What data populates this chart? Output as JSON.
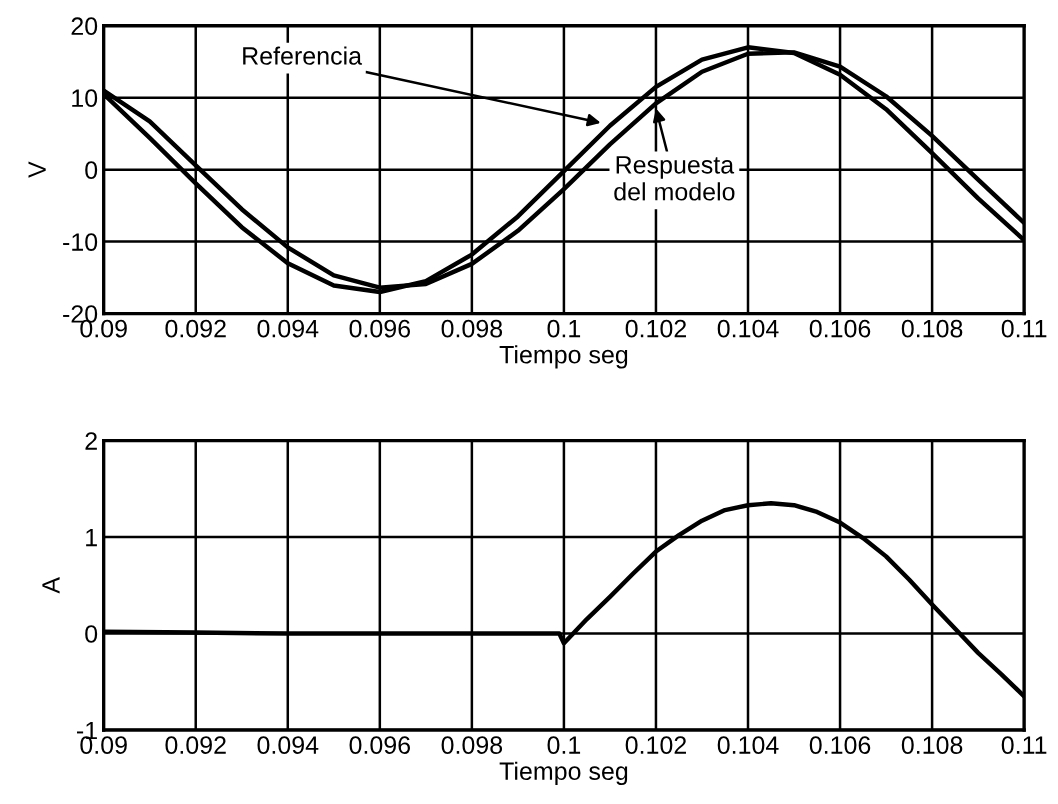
{
  "chart_data": [
    {
      "type": "line",
      "xlabel": "Tiempo seg",
      "ylabel": "V",
      "x": [
        0.09,
        0.091,
        0.092,
        0.093,
        0.094,
        0.095,
        0.096,
        0.097,
        0.098,
        0.099,
        0.1,
        0.101,
        0.102,
        0.103,
        0.104,
        0.105,
        0.106,
        0.107,
        0.108,
        0.109,
        0.11
      ],
      "series": [
        {
          "color": "#000000",
          "values": [
            10.5,
            4.4,
            -1.9,
            -8.0,
            -13.0,
            -16.1,
            -17.0,
            -15.5,
            -11.8,
            -6.5,
            -0.2,
            6.1,
            11.5,
            15.3,
            17.0,
            16.2,
            13.2,
            8.4,
            2.3,
            -4.0,
            -9.8
          ]
        },
        {
          "color": "#000000",
          "values": [
            11.0,
            6.7,
            0.6,
            -5.5,
            -10.8,
            -14.7,
            -16.4,
            -15.9,
            -13.1,
            -8.5,
            -2.7,
            3.5,
            9.2,
            13.6,
            16.1,
            16.3,
            14.3,
            10.2,
            4.7,
            -1.4,
            -7.4
          ]
        }
      ],
      "annotations": [
        {
          "text": "Referencia",
          "x": 0.1008,
          "y": 6.5
        },
        {
          "text": "Respuesta\ndel modelo",
          "x": 0.102,
          "y": 8.5
        }
      ],
      "xlim": [
        0.09,
        0.11
      ],
      "xticks": [
        0.09,
        0.092,
        0.094,
        0.096,
        0.098,
        0.1,
        0.102,
        0.104,
        0.106,
        0.108,
        0.11
      ],
      "ylim": [
        -20,
        20
      ],
      "yticks": [
        -20,
        -10,
        0,
        10,
        20
      ],
      "grid": true,
      "legend": false,
      "line_style": "solid",
      "marker": "none"
    },
    {
      "type": "line",
      "xlabel": "Tiempo seg",
      "ylabel": "A",
      "x": [
        0.09,
        0.092,
        0.094,
        0.096,
        0.098,
        0.0999,
        0.1,
        0.1005,
        0.101,
        0.1015,
        0.102,
        0.1025,
        0.103,
        0.1035,
        0.104,
        0.1045,
        0.105,
        0.1055,
        0.106,
        0.1065,
        0.107,
        0.1075,
        0.108,
        0.1086,
        0.109,
        0.1095,
        0.11
      ],
      "series": [
        {
          "color": "#000000",
          "values": [
            0.02,
            0.01,
            0.0,
            0.0,
            0.0,
            0.0,
            -0.1,
            0.15,
            0.38,
            0.62,
            0.85,
            1.02,
            1.17,
            1.28,
            1.33,
            1.35,
            1.33,
            1.26,
            1.15,
            0.99,
            0.8,
            0.56,
            0.3,
            0.0,
            -0.2,
            -0.42,
            -0.65
          ]
        }
      ],
      "xlim": [
        0.09,
        0.11
      ],
      "xticks": [
        0.09,
        0.092,
        0.094,
        0.096,
        0.098,
        0.1,
        0.102,
        0.104,
        0.106,
        0.108,
        0.11
      ],
      "ylim": [
        -1,
        2
      ],
      "yticks": [
        -1,
        0,
        1,
        2
      ],
      "grid": true,
      "legend": false,
      "line_style": "solid",
      "marker": "none"
    }
  ]
}
